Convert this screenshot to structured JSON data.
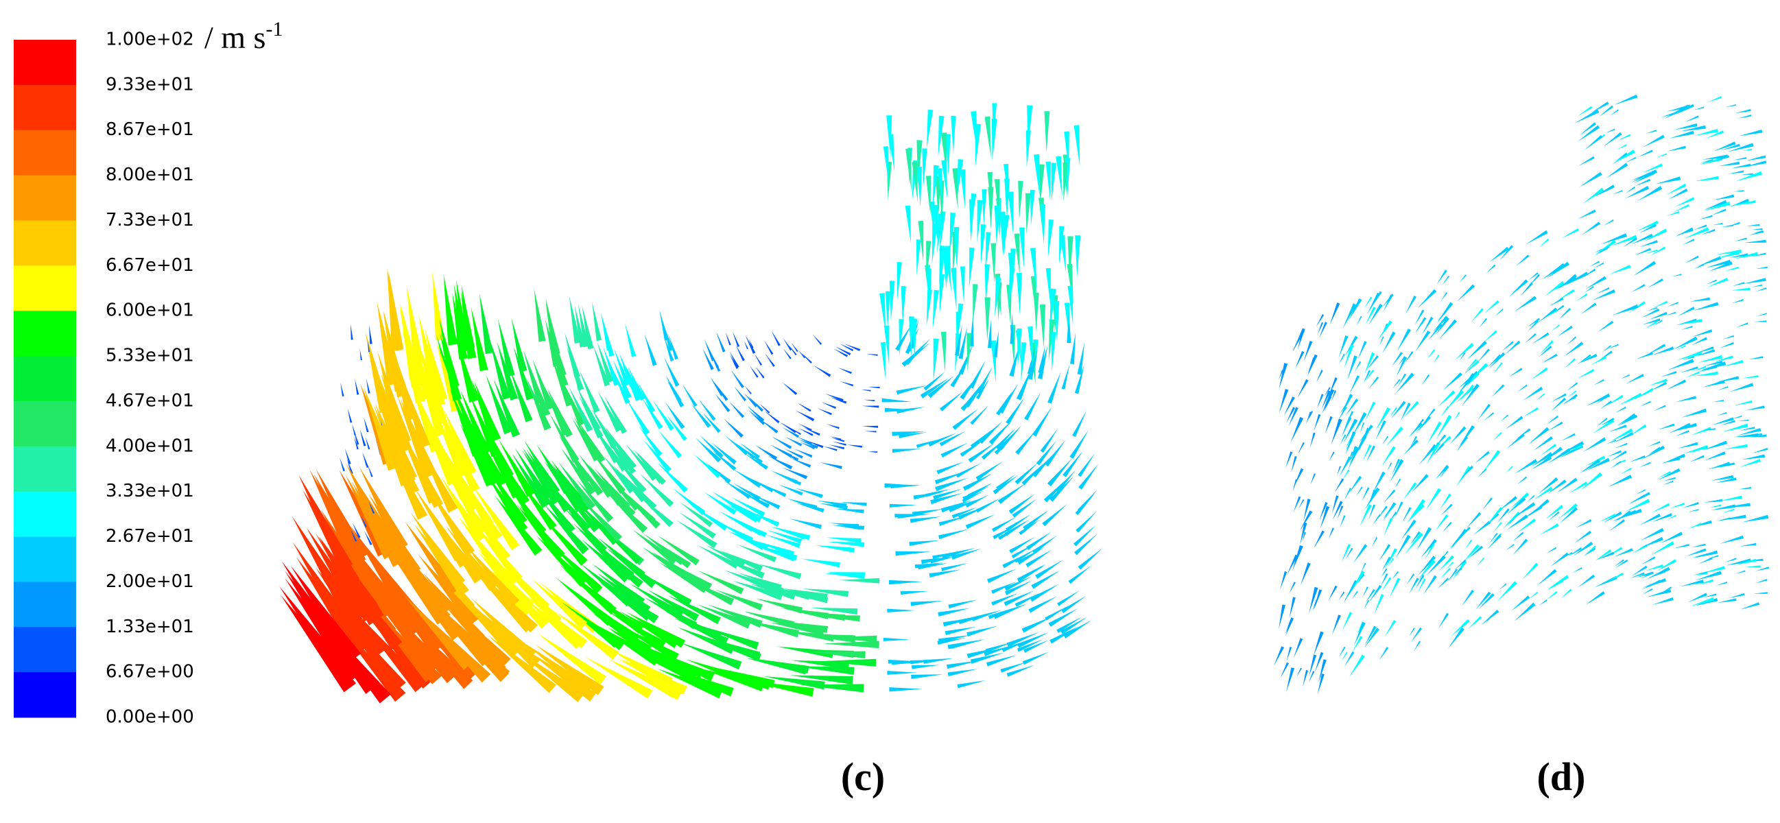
{
  "colorbar": {
    "labels": [
      "1.00e+02",
      "9.33e+01",
      "8.67e+01",
      "8.00e+01",
      "7.33e+01",
      "6.67e+01",
      "6.00e+01",
      "5.33e+01",
      "4.67e+01",
      "4.00e+01",
      "3.33e+01",
      "2.67e+01",
      "2.00e+01",
      "1.33e+01",
      "6.67e+00",
      "0.00e+00"
    ],
    "colors": [
      "#ff0000",
      "#ff3300",
      "#ff6600",
      "#ff9900",
      "#ffcc00",
      "#ffff00",
      "#00ff00",
      "#00ee33",
      "#22e866",
      "#22f0a8",
      "#00ffff",
      "#00ccff",
      "#0099ff",
      "#0055ff",
      "#0000ff"
    ],
    "unit": "/ m s",
    "unit_exponent": "-1"
  },
  "panels": [
    "(c)",
    "(d)"
  ]
}
